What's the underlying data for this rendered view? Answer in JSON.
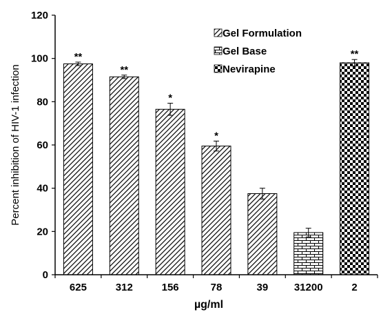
{
  "chart_data": {
    "type": "bar",
    "categories": [
      "625",
      "312",
      "156",
      "78",
      "39",
      "31200",
      "2"
    ],
    "series": [
      {
        "name": "Gel Formulation",
        "pattern": "diagonal",
        "values": [
          97.5,
          91.5,
          76.5,
          59.5,
          37.5,
          null,
          null
        ],
        "errors": [
          0.8,
          0.8,
          2.8,
          2.3,
          2.5,
          null,
          null
        ]
      },
      {
        "name": "Gel Base",
        "pattern": "brick",
        "values": [
          null,
          null,
          null,
          null,
          null,
          19.5,
          null
        ],
        "errors": [
          null,
          null,
          null,
          null,
          null,
          2.0,
          null
        ]
      },
      {
        "name": "Nevirapine",
        "pattern": "checker",
        "values": [
          null,
          null,
          null,
          null,
          null,
          null,
          98
        ],
        "errors": [
          null,
          null,
          null,
          null,
          null,
          null,
          1.5
        ]
      }
    ],
    "annotations": [
      "**",
      "**",
      "*",
      "*",
      "",
      "",
      "**"
    ],
    "title": "",
    "xlabel": "µg/ml",
    "ylabel": "Percent inhibition of HIV-1 infection",
    "ylim": [
      0,
      120
    ],
    "yticks": [
      0,
      20,
      40,
      60,
      80,
      100,
      120
    ],
    "grid": false,
    "legend_position": "top-right"
  }
}
